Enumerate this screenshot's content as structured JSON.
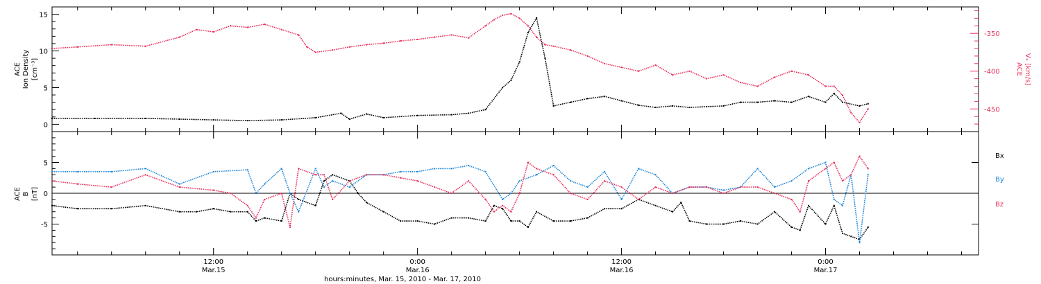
{
  "x_axis": {
    "title": "hours:minutes, Mar. 15, 2010 - Mar. 17, 2010",
    "ticks": [
      {
        "x": 12,
        "time": "12:00",
        "date": "Mar.15"
      },
      {
        "x": 24,
        "time": "0:00",
        "date": "Mar.16"
      },
      {
        "x": 36,
        "time": "12:00",
        "date": "Mar.16"
      },
      {
        "x": 48,
        "time": "0:00",
        "date": "Mar.17"
      }
    ]
  },
  "colors": {
    "black": "#000000",
    "pink": "#e8305a",
    "blue": "#1f86d8"
  },
  "chart_data": [
    {
      "type": "scatter",
      "panel": "top",
      "ylabel_left": [
        "ACE",
        "Ion Density",
        "[cm⁻³]"
      ],
      "ylabel_right": [
        "ACE",
        "Vₓ [km/s]"
      ],
      "xlim": [
        2.5,
        57
      ],
      "ylim_left": [
        -1,
        16
      ],
      "ylim_right": [
        -480,
        -315
      ],
      "yticks_left": [
        0,
        5,
        10,
        15
      ],
      "yticks_right": [
        -350,
        -400,
        -450
      ],
      "series": [
        {
          "name": "Ion Density",
          "axis": "left",
          "color": "#000000",
          "x": [
            2.5,
            5,
            8,
            10,
            12,
            14,
            16,
            18,
            19.5,
            20,
            21,
            22,
            24,
            26,
            27,
            28,
            29,
            29.5,
            30,
            30.5,
            31,
            31.5,
            32,
            33,
            34,
            35,
            36,
            37,
            38,
            39,
            40,
            41,
            42,
            43,
            44,
            45,
            46,
            47,
            48,
            48.5,
            49,
            50,
            50.5
          ],
          "y": [
            0.8,
            0.8,
            0.8,
            0.7,
            0.6,
            0.5,
            0.6,
            0.9,
            1.5,
            0.7,
            1.4,
            0.9,
            1.2,
            1.3,
            1.5,
            2.0,
            5.0,
            6.0,
            8.5,
            12.5,
            14.5,
            9.0,
            2.5,
            3.0,
            3.5,
            3.8,
            3.2,
            2.6,
            2.3,
            2.5,
            2.3,
            2.4,
            2.5,
            3.0,
            3.0,
            3.2,
            3.0,
            3.8,
            3.0,
            4.2,
            3.0,
            2.5,
            2.8
          ]
        },
        {
          "name": "Vx",
          "axis": "right",
          "color": "#e8305a",
          "x": [
            2.5,
            4,
            6,
            8,
            10,
            11,
            12,
            13,
            14,
            15,
            16,
            17,
            17.5,
            18,
            19,
            20,
            21,
            22,
            23,
            24,
            25,
            26,
            27,
            28,
            28.5,
            29,
            29.5,
            30,
            30.5,
            31,
            31.5,
            32,
            33,
            34,
            35,
            36,
            37,
            38,
            39,
            40,
            41,
            42,
            43,
            44,
            45,
            46,
            47,
            48,
            48.5,
            49,
            49.5,
            50,
            50.5
          ],
          "y": [
            -370,
            -368,
            -365,
            -367,
            -355,
            -345,
            -348,
            -340,
            -342,
            -338,
            -345,
            -352,
            -368,
            -375,
            -372,
            -368,
            -365,
            -363,
            -360,
            -358,
            -355,
            -352,
            -356,
            -340,
            -332,
            -326,
            -324,
            -330,
            -340,
            -355,
            -365,
            -367,
            -372,
            -380,
            -390,
            -395,
            -400,
            -392,
            -405,
            -400,
            -410,
            -405,
            -415,
            -420,
            -408,
            -400,
            -405,
            -420,
            -420,
            -432,
            -455,
            -468,
            -450
          ]
        }
      ]
    },
    {
      "type": "scatter",
      "panel": "bottom",
      "ylabel_left": [
        "ACE",
        "B",
        "[nT]"
      ],
      "xlim": [
        2.5,
        57
      ],
      "ylim": [
        -10,
        10
      ],
      "yticks": [
        5,
        0,
        -5
      ],
      "zero_line": true,
      "legend_position": "right",
      "series": [
        {
          "name": "Bx",
          "color": "#000000",
          "x": [
            2.5,
            4,
            6,
            8,
            10,
            11,
            12,
            13,
            14,
            14.5,
            15,
            16,
            16.5,
            17,
            18,
            18.5,
            19,
            20,
            20.5,
            21,
            22,
            23,
            24,
            25,
            26,
            27,
            28,
            28.5,
            29,
            29.5,
            30,
            30.5,
            31,
            32,
            33,
            34,
            35,
            36,
            37,
            38,
            39,
            39.5,
            40,
            41,
            42,
            43,
            44,
            45,
            46,
            46.5,
            47,
            48,
            48.5,
            49,
            49.5,
            50,
            50.5
          ],
          "y": [
            -2,
            -2.5,
            -2.5,
            -2,
            -3,
            -3,
            -2.5,
            -3,
            -3,
            -4.5,
            -4,
            -4.5,
            0,
            -1,
            -2,
            2,
            3,
            2,
            0,
            -1.5,
            -3,
            -4.5,
            -4.5,
            -5,
            -4,
            -4,
            -4.5,
            -2,
            -2.5,
            -4.5,
            -4.5,
            -5.5,
            -3,
            -4.5,
            -4.5,
            -4,
            -2.5,
            -2.5,
            -1,
            -2,
            -3,
            -1.5,
            -4.5,
            -5,
            -5,
            -4.5,
            -5,
            -3,
            -5.5,
            -6,
            -2,
            -5,
            -2,
            -6.5,
            -7,
            -7.5,
            -5.5
          ]
        },
        {
          "name": "By",
          "color": "#1f86d8",
          "x": [
            2.5,
            4,
            6,
            8,
            10,
            12,
            14,
            14.5,
            15,
            16,
            16.5,
            17,
            18,
            18.5,
            19,
            20,
            21,
            22,
            23,
            24,
            25,
            26,
            27,
            28,
            29,
            29.5,
            30,
            31,
            32,
            33,
            34,
            35,
            36,
            37,
            38,
            39,
            40,
            41,
            42,
            43,
            44,
            45,
            46,
            47,
            48,
            48.5,
            49,
            49.5,
            50,
            50.5
          ],
          "y": [
            3.5,
            3.5,
            3.5,
            4,
            1.5,
            3.5,
            3.8,
            0,
            1.5,
            4,
            0,
            -3,
            4,
            1,
            2,
            1,
            3,
            3,
            3.5,
            3.5,
            4,
            4,
            4.5,
            3.5,
            -1,
            0,
            2,
            3,
            4.5,
            2,
            1,
            3.5,
            -1,
            4,
            3,
            0,
            1,
            1,
            0.5,
            1,
            4,
            1,
            2,
            4,
            5,
            -1,
            -2,
            3,
            -8,
            3
          ]
        },
        {
          "name": "Bz",
          "color": "#e8305a",
          "x": [
            2.5,
            4,
            6,
            8,
            10,
            12,
            13,
            14,
            14.5,
            15,
            16,
            16.5,
            17,
            18,
            18.5,
            19,
            20,
            21,
            22,
            23,
            24,
            25,
            26,
            27,
            28,
            28.5,
            29,
            29.5,
            30,
            30.5,
            31,
            32,
            33,
            34,
            35,
            36,
            37,
            38,
            39,
            40,
            41,
            42,
            43,
            44,
            45,
            46,
            46.5,
            47,
            48,
            48.5,
            49,
            49.5,
            50,
            50.5
          ],
          "y": [
            2,
            1.5,
            1,
            3,
            1,
            0.5,
            0,
            -2,
            -4,
            -1,
            0,
            -5.5,
            4,
            3,
            3,
            -1,
            2,
            3,
            3,
            2.5,
            2,
            1,
            0,
            2,
            -1,
            -3,
            -2,
            -3,
            0,
            5,
            4,
            3,
            0,
            -1,
            2,
            1,
            -1,
            1,
            0,
            1,
            1,
            0,
            1,
            1,
            0,
            -1,
            -3,
            2,
            4,
            5,
            2,
            3,
            6,
            4
          ]
        }
      ]
    }
  ]
}
